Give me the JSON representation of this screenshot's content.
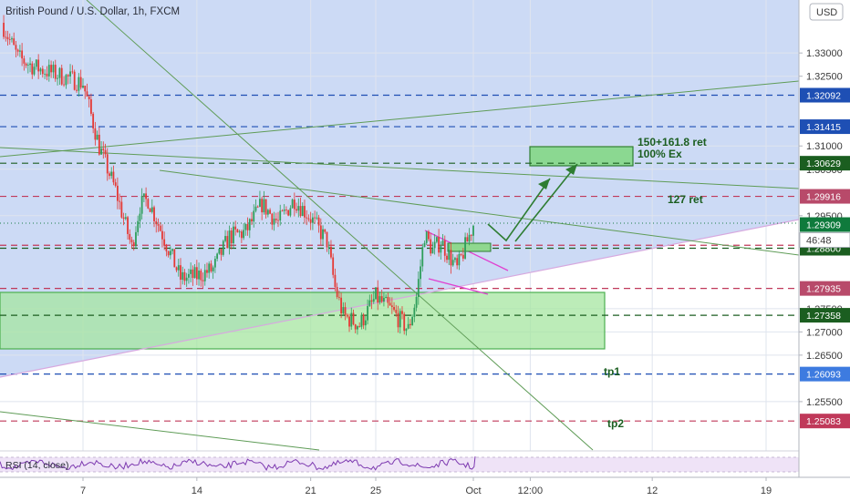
{
  "chart_data": {
    "type": "candlestick",
    "title": "British Pound / U.S. Dollar, 1h, FXCM",
    "currency": "USD",
    "ylim": [
      1.2444,
      1.3414
    ],
    "y_ticks": [
      1.33,
      1.325,
      1.31,
      1.305,
      1.295,
      1.275,
      1.27,
      1.265,
      1.255
    ],
    "y_tick_labels": [
      "1.33000",
      "1.32500",
      "1.31000",
      "1.30500",
      "1.29500",
      "1.27500",
      "1.27000",
      "1.26500",
      "1.25500"
    ],
    "x_ticks": [
      7,
      14,
      21,
      25,
      "Oct",
      "12:00",
      12,
      19
    ],
    "x_tick_labels": [
      "7",
      "14",
      "21",
      "25",
      "Oct",
      "12:00",
      "12",
      "19"
    ],
    "x_tick_dates": [
      "2020-09-07",
      "2020-09-14",
      "2020-09-21",
      "2020-09-25",
      "2020-10-01",
      "2020-10-04T12:00",
      "2020-10-12",
      "2020-10-19"
    ],
    "price_levels": [
      {
        "label": "1.32092",
        "value": 1.32092,
        "style": "dashed",
        "color": "#1e4fb4",
        "label_color": "#1e4fb4"
      },
      {
        "label": "1.31415",
        "value": 1.31415,
        "style": "dashed",
        "color": "#1e4fb4",
        "label_color": "#1e4fb4"
      },
      {
        "label": "1.30629",
        "value": 1.30629,
        "style": "dashed",
        "color": "#1b5e20",
        "label_color": "#1b5e20"
      },
      {
        "label": "1.29916",
        "value": 1.29916,
        "style": "dashed",
        "color": "#c0395a",
        "label_color": "#b84a6a"
      },
      {
        "label": "1.28864",
        "value": 1.28864,
        "style": "dashed",
        "color": "#c0395a",
        "label_color": "#ffffff"
      },
      {
        "label": "1.28800",
        "value": 1.288,
        "style": "dashed",
        "color": "#1b5e20",
        "label_color": "#1b5e20"
      },
      {
        "label": "1.27935",
        "value": 1.27935,
        "style": "dashed",
        "color": "#c0395a",
        "label_color": "#b84a6a"
      },
      {
        "label": "1.27358",
        "value": 1.27358,
        "style": "dashed",
        "color": "#1b5e20",
        "label_color": "#1b5e20"
      },
      {
        "label": "1.26093",
        "value": 1.26093,
        "style": "dashed",
        "color": "#1e4fb4",
        "label_color": "#3d7be0"
      },
      {
        "label": "1.25083",
        "value": 1.25083,
        "style": "dashed",
        "color": "#c0395a",
        "label_color": "#c0395a"
      }
    ],
    "last_price": {
      "label": "1.29309",
      "value": 1.29309,
      "color": "#0f7a3c"
    },
    "countdown": "46:48",
    "annotations": [
      "150+161.8 ret",
      "100% Ex",
      "127 ret",
      "tp1",
      "tp2"
    ],
    "rsi": {
      "label": "RSI (14, close)"
    },
    "price_path": [
      {
        "t": "2020-09-02",
        "p": 1.3365
      },
      {
        "t": "2020-09-03",
        "p": 1.329
      },
      {
        "t": "2020-09-04",
        "p": 1.327
      },
      {
        "t": "2020-09-07",
        "p": 1.3235
      },
      {
        "t": "2020-09-08",
        "p": 1.3098
      },
      {
        "t": "2020-09-09",
        "p": 1.3005
      },
      {
        "t": "2020-09-10",
        "p": 1.2882
      },
      {
        "t": "2020-09-10T12:00",
        "p": 1.2972
      },
      {
        "t": "2020-09-11",
        "p": 1.2985
      },
      {
        "t": "2020-09-13",
        "p": 1.2815
      },
      {
        "t": "2020-09-14",
        "p": 1.282
      },
      {
        "t": "2020-09-15",
        "p": 1.2835
      },
      {
        "t": "2020-09-16",
        "p": 1.2905
      },
      {
        "t": "2020-09-17",
        "p": 1.2915
      },
      {
        "t": "2020-09-18",
        "p": 1.2975
      },
      {
        "t": "2020-09-19",
        "p": 1.2935
      },
      {
        "t": "2020-09-20",
        "p": 1.2985
      },
      {
        "t": "2020-09-21",
        "p": 1.2945
      },
      {
        "t": "2020-09-22",
        "p": 1.2895
      },
      {
        "t": "2020-09-22T12:00",
        "p": 1.2795
      },
      {
        "t": "2020-09-23",
        "p": 1.2735
      },
      {
        "t": "2020-09-24",
        "p": 1.2715
      },
      {
        "t": "2020-09-25",
        "p": 1.2775
      },
      {
        "t": "2020-09-26",
        "p": 1.2745
      },
      {
        "t": "2020-09-27",
        "p": 1.2705
      },
      {
        "t": "2020-09-27T12:00",
        "p": 1.2775
      },
      {
        "t": "2020-09-28",
        "p": 1.291
      },
      {
        "t": "2020-09-28T12:00",
        "p": 1.2875
      },
      {
        "t": "2020-09-29",
        "p": 1.2895
      },
      {
        "t": "2020-09-30",
        "p": 1.2835
      },
      {
        "t": "2020-10-01",
        "p": 1.2931
      }
    ]
  }
}
